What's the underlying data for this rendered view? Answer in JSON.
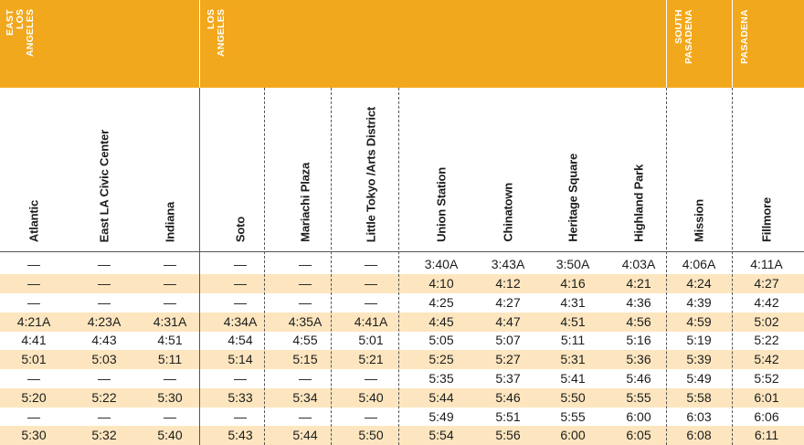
{
  "zones": [
    {
      "id": "east-los-angeles",
      "label": "EAST\nLOS\nANGELES"
    },
    {
      "id": "los-angeles",
      "label": "LOS\nANGELES"
    },
    {
      "id": "south-pasadena",
      "label": "SOUTH\nPASADENA"
    },
    {
      "id": "pasadena",
      "label": "PASADENA"
    }
  ],
  "stations": [
    "Atlantic",
    "East LA Civic Center",
    "Indiana",
    "Soto",
    "Mariachi Plaza",
    "Little Tokyo /Arts District",
    "Union Station",
    "Chinatown",
    "Heritage Square",
    "Highland Park",
    "Mission",
    "Fillmore"
  ],
  "rows": [
    [
      "—",
      "—",
      "—",
      "—",
      "—",
      "—",
      "3:40A",
      "3:43A",
      "3:50A",
      "4:03A",
      "4:06A",
      "4:11A"
    ],
    [
      "—",
      "—",
      "—",
      "—",
      "—",
      "—",
      "4:10",
      "4:12",
      "4:16",
      "4:21",
      "4:24",
      "4:27"
    ],
    [
      "—",
      "—",
      "—",
      "—",
      "—",
      "—",
      "4:25",
      "4:27",
      "4:31",
      "4:36",
      "4:39",
      "4:42"
    ],
    [
      "4:21A",
      "4:23A",
      "4:31A",
      "4:34A",
      "4:35A",
      "4:41A",
      "4:45",
      "4:47",
      "4:51",
      "4:56",
      "4:59",
      "5:02"
    ],
    [
      "4:41",
      "4:43",
      "4:51",
      "4:54",
      "4:55",
      "5:01",
      "5:05",
      "5:07",
      "5:11",
      "5:16",
      "5:19",
      "5:22"
    ],
    [
      "5:01",
      "5:03",
      "5:11",
      "5:14",
      "5:15",
      "5:21",
      "5:25",
      "5:27",
      "5:31",
      "5:36",
      "5:39",
      "5:42"
    ],
    [
      "—",
      "—",
      "—",
      "—",
      "—",
      "—",
      "5:35",
      "5:37",
      "5:41",
      "5:46",
      "5:49",
      "5:52"
    ],
    [
      "5:20",
      "5:22",
      "5:30",
      "5:33",
      "5:34",
      "5:40",
      "5:44",
      "5:46",
      "5:50",
      "5:55",
      "5:58",
      "6:01"
    ],
    [
      "—",
      "—",
      "—",
      "—",
      "—",
      "—",
      "5:49",
      "5:51",
      "5:55",
      "6:00",
      "6:03",
      "6:06"
    ],
    [
      "5:30",
      "5:32",
      "5:40",
      "5:43",
      "5:44",
      "5:50",
      "5:54",
      "5:56",
      "6:00",
      "6:05",
      "6:08",
      "6:11"
    ]
  ],
  "colors": {
    "zone_bar": "#f2a81c",
    "row_shade": "#fde6bf",
    "text": "#1c1c1c"
  }
}
